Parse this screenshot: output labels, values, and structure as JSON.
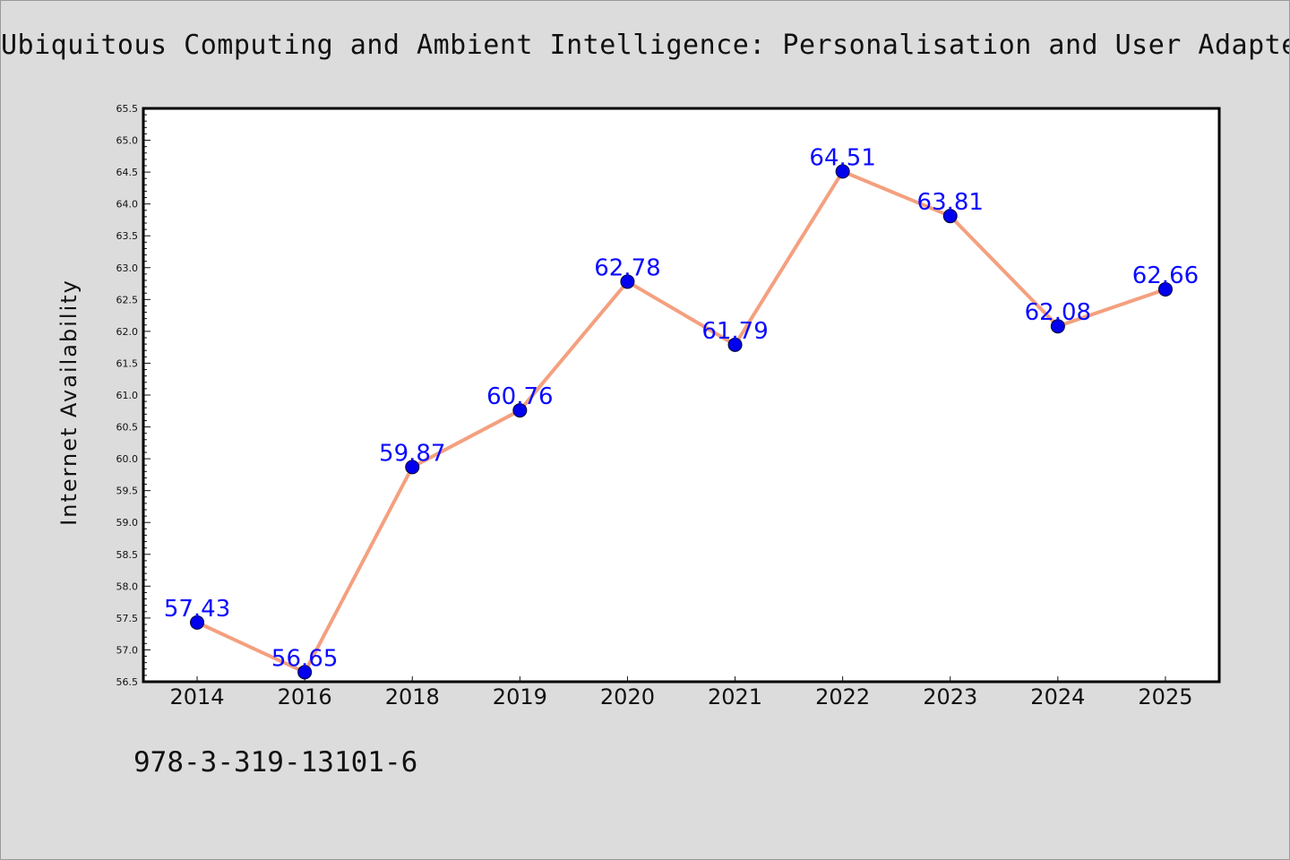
{
  "chart_data": {
    "type": "line",
    "title": "Ubiquitous Computing and Ambient Intelligence: Personalisation and User Adapted",
    "xlabel": "",
    "ylabel": "Internet Availability",
    "categories": [
      "2014",
      "2016",
      "2018",
      "2019",
      "2020",
      "2021",
      "2022",
      "2023",
      "2024",
      "2025"
    ],
    "series": [
      {
        "values": [
          57.43,
          56.65,
          59.87,
          60.76,
          62.78,
          61.79,
          64.51,
          63.81,
          62.08,
          62.66
        ]
      }
    ],
    "data_labels": [
      "57.43",
      "56.65",
      "59.87",
      "60.76",
      "62.78",
      "61.79",
      "64.51",
      "63.81",
      "62.08",
      "62.66"
    ],
    "ylim": [
      56.5,
      65.5
    ],
    "y_major_ticks": [
      "56.5",
      "57.0",
      "57.5",
      "58.0",
      "58.5",
      "59.0",
      "59.5",
      "60.0",
      "60.5",
      "61.0",
      "61.5",
      "62.0",
      "62.5",
      "63.0",
      "63.5",
      "64.0",
      "64.5",
      "65.0",
      "65.5"
    ],
    "grid": false,
    "legend": "none",
    "line_color": "#f4a07f",
    "marker_color": "#0000ee",
    "label_color": "#0a0aff"
  },
  "footer": {
    "isbn": "978-3-319-13101-6"
  }
}
